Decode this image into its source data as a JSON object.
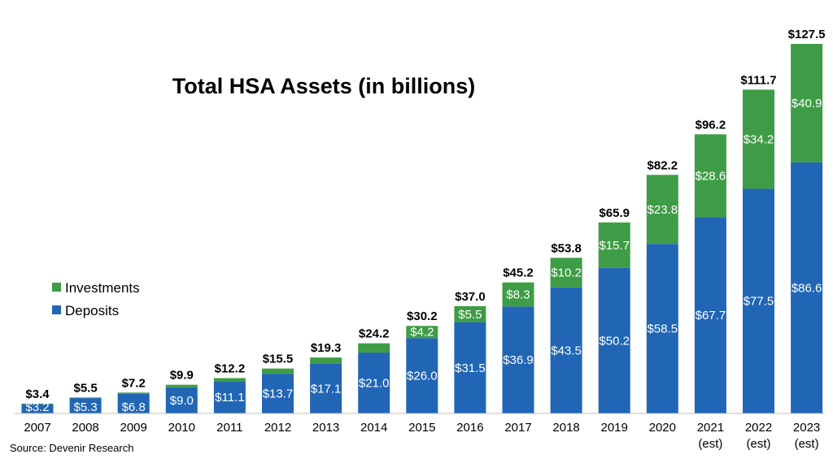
{
  "chart_data": {
    "type": "bar",
    "stacked": true,
    "title": "Total HSA Assets (in billions)",
    "categories": [
      "2007",
      "2008",
      "2009",
      "2010",
      "2011",
      "2012",
      "2013",
      "2014",
      "2015",
      "2016",
      "2017",
      "2018",
      "2019",
      "2020",
      "2021",
      "2022",
      "2023"
    ],
    "category_sublabels": [
      "",
      "",
      "",
      "",
      "",
      "",
      "",
      "",
      "",
      "",
      "",
      "",
      "",
      "",
      "(est)",
      "(est)",
      "(est)"
    ],
    "series": [
      {
        "name": "Deposits",
        "color": "#2166b5",
        "values": [
          3.2,
          5.3,
          6.8,
          9.0,
          11.1,
          13.7,
          17.1,
          21.0,
          26.0,
          31.5,
          36.9,
          43.5,
          50.2,
          58.5,
          67.7,
          77.5,
          86.6
        ],
        "labels": [
          "$3.2",
          "$5.3",
          "$6.8",
          "$9.0",
          "$11.1",
          "$13.7",
          "$17.1",
          "$21.0",
          "$26.0",
          "$31.5",
          "$36.9",
          "$43.5",
          "$50.2",
          "$58.5",
          "$67.7",
          "$77.5",
          "$86.6"
        ]
      },
      {
        "name": "Investments",
        "color": "#3f9c46",
        "values": [
          0.2,
          0.2,
          0.4,
          0.9,
          1.1,
          1.8,
          2.2,
          3.2,
          4.2,
          5.5,
          8.3,
          10.2,
          15.7,
          23.8,
          28.6,
          34.2,
          40.9
        ],
        "labels": [
          "",
          "",
          "",
          "",
          "",
          "",
          "",
          "",
          "$4.2",
          "$5.5",
          "$8.3",
          "$10.2",
          "$15.7",
          "$23.8",
          "$28.6",
          "$34.2",
          "$40.9"
        ]
      }
    ],
    "totals": [
      "$3.4",
      "$5.5",
      "$7.2",
      "$9.9",
      "$12.2",
      "$15.5",
      "$19.3",
      "$24.2",
      "$30.2",
      "$37.0",
      "$45.2",
      "$53.8",
      "$65.9",
      "$82.2",
      "$96.2",
      "$111.7",
      "$127.5"
    ],
    "ylim": [
      0,
      135
    ],
    "grid": false,
    "legend": {
      "placement": "left-middle",
      "order": [
        "Investments",
        "Deposits"
      ]
    },
    "source": "Source: Devenir Research"
  }
}
